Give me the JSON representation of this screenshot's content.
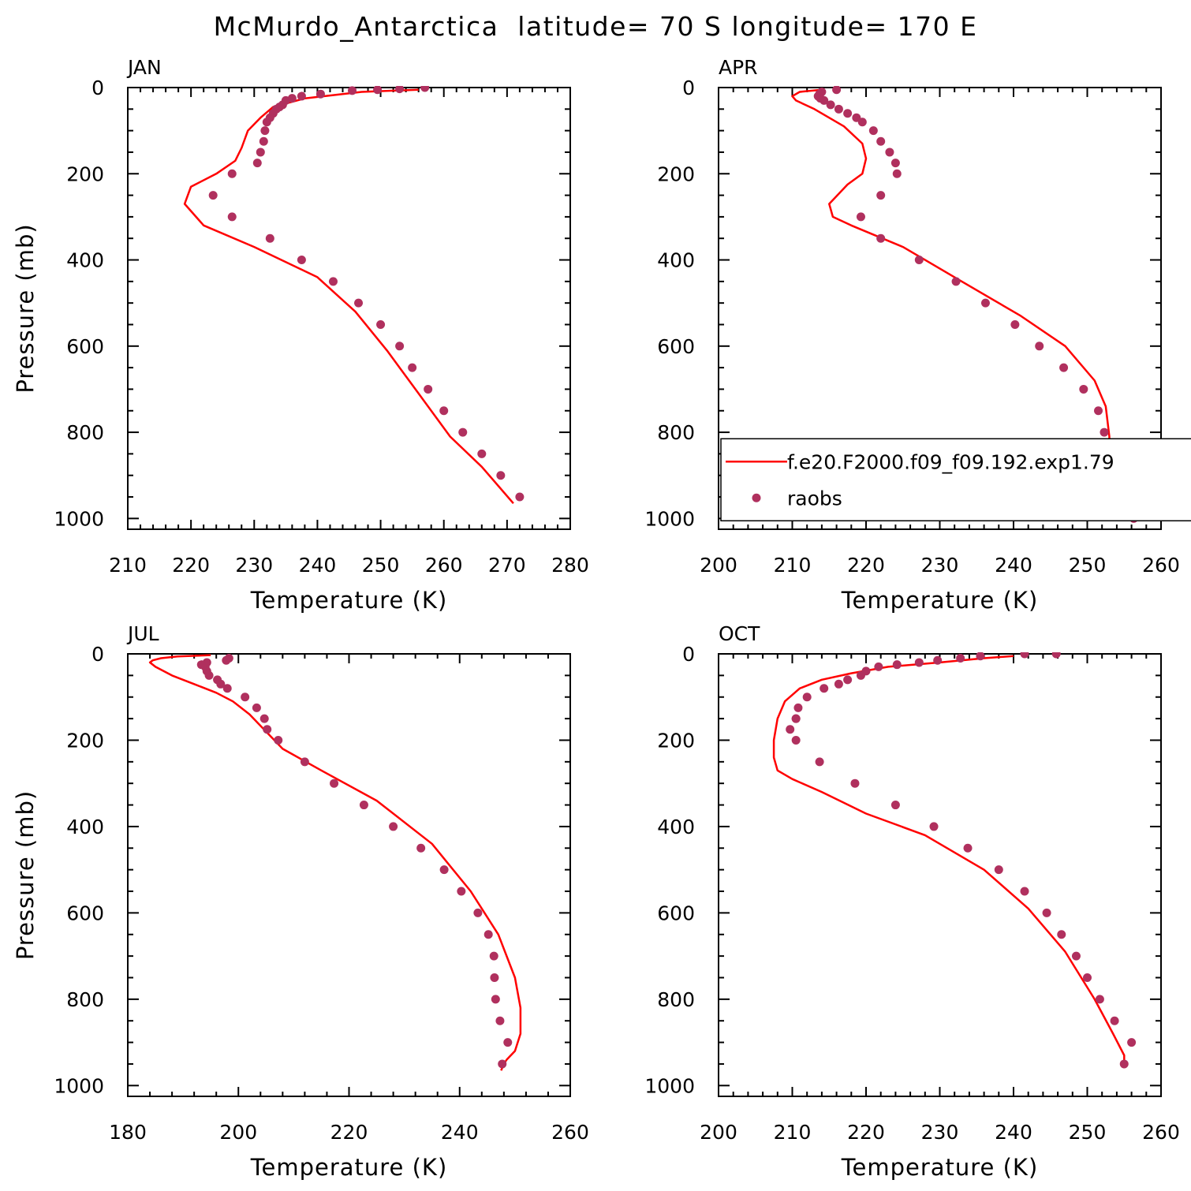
{
  "figure": {
    "title": "McMurdo_Antarctica  latitude= 70 S longitude= 170 E"
  },
  "colors": {
    "model_line": "#ff0000",
    "obs_marker": "#b0305e",
    "axes": "#000000",
    "background": "#ffffff"
  },
  "legend": {
    "model_label": "f.e20.F2000.f09_f09.192.exp1.79",
    "obs_label": "raobs"
  },
  "chart_data": [
    {
      "type": "line",
      "panel": "JAN",
      "xlabel": "Temperature (K)",
      "ylabel": "Pressure (mb)",
      "xlim": [
        210,
        280
      ],
      "xticks": [
        210,
        220,
        230,
        240,
        250,
        260,
        270,
        280
      ],
      "ylim": [
        1025,
        0
      ],
      "yticks": [
        0,
        200,
        400,
        600,
        800,
        1000
      ],
      "series": [
        {
          "name": "f.e20.F2000.f09_f09.192.exp1.79",
          "style": "line",
          "x": [
            256,
            247,
            238,
            233,
            231,
            229,
            228,
            227,
            224,
            220,
            219,
            222,
            230,
            240,
            246,
            251,
            256,
            261,
            266,
            271
          ],
          "y": [
            5,
            10,
            25,
            45,
            70,
            100,
            140,
            170,
            200,
            230,
            270,
            320,
            370,
            440,
            520,
            610,
            710,
            810,
            880,
            965
          ]
        },
        {
          "name": "raobs",
          "style": "scatter",
          "x": [
            257,
            253,
            249.5,
            245.5,
            240.5,
            237.5,
            236,
            235,
            234.5,
            234,
            233.5,
            233,
            232.5,
            232,
            231.7,
            231.5,
            231,
            230.5,
            226.5,
            223.5,
            226.5,
            232.5,
            237.5,
            242.5,
            246.5,
            250,
            253,
            255,
            257.5,
            260,
            263,
            266,
            269,
            272
          ],
          "y": [
            0,
            3,
            5,
            7,
            15,
            20,
            25,
            30,
            40,
            45,
            50,
            60,
            70,
            80,
            100,
            125,
            150,
            175,
            200,
            250,
            300,
            350,
            400,
            450,
            500,
            550,
            600,
            650,
            700,
            750,
            800,
            850,
            900,
            950
          ]
        }
      ]
    },
    {
      "type": "line",
      "panel": "APR",
      "xlabel": "Temperature (K)",
      "ylabel": "",
      "xlim": [
        200,
        260
      ],
      "xticks": [
        200,
        210,
        220,
        230,
        240,
        250,
        260
      ],
      "ylim": [
        1025,
        0
      ],
      "yticks": [
        0,
        200,
        400,
        600,
        800,
        1000
      ],
      "series": [
        {
          "name": "f.e20.F2000.f09_f09.192.exp1.79",
          "style": "line",
          "x": [
            214,
            211,
            210,
            210.5,
            213,
            217,
            219.5,
            220,
            219.5,
            217.5,
            215,
            215.5,
            218,
            225,
            233,
            241,
            247,
            251,
            252.5,
            253,
            253,
            253.5,
            256
          ],
          "y": [
            5,
            10,
            20,
            30,
            50,
            90,
            130,
            165,
            200,
            225,
            270,
            300,
            320,
            370,
            450,
            530,
            600,
            680,
            740,
            810,
            860,
            900,
            965
          ]
        },
        {
          "name": "raobs",
          "style": "scatter",
          "x": [
            216,
            214,
            213.7,
            213.5,
            213.8,
            214.3,
            215.2,
            216.3,
            217.5,
            218.7,
            219.5,
            221,
            222,
            223.2,
            224,
            224.2,
            222,
            219.3,
            222,
            227.2,
            232.2,
            236.2,
            240.2,
            243.5,
            246.8,
            249.5,
            251.5,
            252.3,
            252.5,
            253.5,
            256,
            256.3
          ],
          "y": [
            5,
            10,
            15,
            20,
            25,
            30,
            40,
            50,
            60,
            70,
            80,
            100,
            125,
            150,
            175,
            200,
            250,
            300,
            350,
            400,
            450,
            500,
            550,
            600,
            650,
            700,
            750,
            800,
            850,
            900,
            950,
            1000
          ]
        }
      ]
    },
    {
      "type": "line",
      "panel": "JUL",
      "xlabel": "Temperature (K)",
      "ylabel": "Pressure (mb)",
      "xlim": [
        180,
        260
      ],
      "xticks": [
        180,
        200,
        220,
        240,
        260
      ],
      "ylim": [
        1025,
        0
      ],
      "yticks": [
        0,
        200,
        400,
        600,
        800,
        1000
      ],
      "series": [
        {
          "name": "f.e20.F2000.f09_f09.192.exp1.79",
          "style": "line",
          "x": [
            195,
            189,
            186,
            184.5,
            184,
            185,
            188,
            192,
            196,
            199,
            202,
            205,
            208,
            215,
            225,
            235,
            242,
            247,
            250,
            251,
            251,
            250,
            248.5,
            248,
            247.5
          ],
          "y": [
            3,
            6,
            10,
            15,
            20,
            30,
            50,
            70,
            90,
            110,
            140,
            180,
            220,
            270,
            340,
            440,
            550,
            650,
            750,
            820,
            880,
            920,
            940,
            950,
            965
          ]
        },
        {
          "name": "raobs",
          "style": "scatter",
          "x": [
            198.3,
            197.8,
            194.3,
            193.3,
            194,
            194.3,
            194.7,
            196.2,
            196.8,
            198,
            201.2,
            203.3,
            204.7,
            205.2,
            207.2,
            212,
            217.3,
            222.7,
            228,
            233,
            237.2,
            240.3,
            243.3,
            245.2,
            246.2,
            246.3,
            246.5,
            247.3,
            248.7,
            247.7
          ],
          "y": [
            10,
            15,
            20,
            25,
            30,
            40,
            50,
            60,
            70,
            80,
            100,
            125,
            150,
            175,
            200,
            250,
            300,
            350,
            400,
            450,
            500,
            550,
            600,
            650,
            700,
            750,
            800,
            850,
            900,
            950
          ]
        }
      ]
    },
    {
      "type": "line",
      "panel": "OCT",
      "xlabel": "Temperature (K)",
      "ylabel": "",
      "xlim": [
        200,
        260
      ],
      "xticks": [
        200,
        210,
        220,
        230,
        240,
        250,
        260
      ],
      "ylim": [
        1025,
        0
      ],
      "yticks": [
        0,
        200,
        400,
        600,
        800,
        1000
      ],
      "series": [
        {
          "name": "f.e20.F2000.f09_f09.192.exp1.79",
          "style": "line",
          "x": [
            240,
            236,
            230,
            223,
            218,
            214,
            211,
            209,
            208,
            207.5,
            207.5,
            208,
            210,
            214,
            220,
            228,
            236,
            242,
            247,
            251,
            253.5,
            255,
            255
          ],
          "y": [
            5,
            10,
            20,
            30,
            45,
            60,
            80,
            110,
            150,
            200,
            240,
            270,
            290,
            320,
            370,
            420,
            500,
            590,
            690,
            800,
            880,
            930,
            960
          ]
        },
        {
          "name": "raobs",
          "style": "scatter",
          "x": [
            245.8,
            241.5,
            235.5,
            232.8,
            229.7,
            227.2,
            224.2,
            221.7,
            220,
            219.3,
            217.5,
            216.3,
            214.3,
            212,
            210.8,
            210.5,
            210.5,
            209.7,
            210.5,
            213.7,
            218.5,
            224,
            229.2,
            233.8,
            238,
            241.5,
            244.5,
            246.5,
            248.5,
            250,
            251.7,
            253.7,
            256,
            255
          ],
          "y": [
            0,
            0,
            5,
            10,
            15,
            20,
            25,
            30,
            40,
            50,
            60,
            70,
            80,
            100,
            125,
            150,
            150,
            175,
            200,
            250,
            300,
            350,
            400,
            450,
            500,
            550,
            600,
            650,
            700,
            750,
            800,
            850,
            900,
            950
          ]
        }
      ]
    }
  ]
}
